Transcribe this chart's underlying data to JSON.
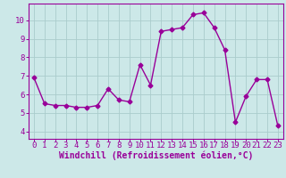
{
  "x": [
    0,
    1,
    2,
    3,
    4,
    5,
    6,
    7,
    8,
    9,
    10,
    11,
    12,
    13,
    14,
    15,
    16,
    17,
    18,
    19,
    20,
    21,
    22,
    23
  ],
  "y": [
    6.9,
    5.5,
    5.4,
    5.4,
    5.3,
    5.3,
    5.4,
    6.3,
    5.7,
    5.6,
    7.6,
    6.5,
    9.4,
    9.5,
    9.6,
    10.3,
    10.4,
    9.6,
    8.4,
    4.5,
    5.9,
    6.8,
    6.8,
    4.3
  ],
  "line_color": "#990099",
  "marker": "D",
  "markersize": 2.5,
  "linewidth": 1.0,
  "bg_color": "#cce8e8",
  "grid_color": "#aacccc",
  "xlabel": "Windchill (Refroidissement éolien,°C)",
  "xlabel_fontsize": 7,
  "xtick_labels": [
    "0",
    "1",
    "2",
    "3",
    "4",
    "5",
    "6",
    "7",
    "8",
    "9",
    "10",
    "11",
    "12",
    "13",
    "14",
    "15",
    "16",
    "17",
    "18",
    "19",
    "20",
    "21",
    "22",
    "23"
  ],
  "ytick_vals": [
    4,
    5,
    6,
    7,
    8,
    9,
    10
  ],
  "ylim": [
    3.6,
    10.9
  ],
  "xlim": [
    -0.5,
    23.5
  ],
  "tick_fontsize": 6.5
}
